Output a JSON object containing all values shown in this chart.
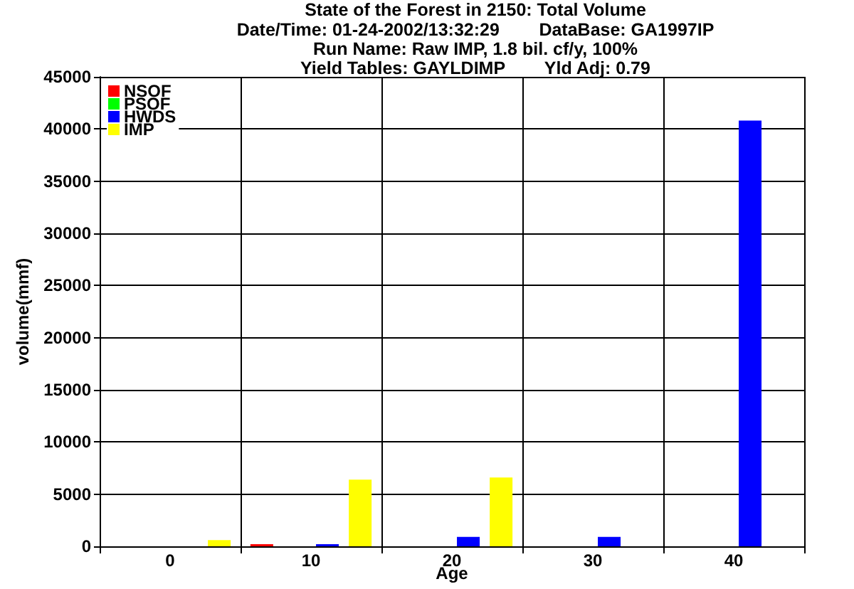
{
  "chart_data": {
    "type": "bar",
    "title": "State of the Forest in 2150: Total Volume",
    "subtitle": "Date/Time: 01-24-2002/13:32:29        DataBase: GA1997IP\nRun Name: Raw IMP, 1.8 bil. cf/y, 100%\nYield Tables: GAYLDIMP        Yld Adj: 0.79",
    "xlabel": "Age",
    "ylabel": "volume(mmf)",
    "categories": [
      "0",
      "10",
      "20",
      "30",
      "40"
    ],
    "series": [
      {
        "name": "NSOF",
        "color": "#ff0000",
        "values": [
          0,
          200,
          0,
          0,
          0
        ]
      },
      {
        "name": "PSOF",
        "color": "#00ff00",
        "values": [
          0,
          0,
          0,
          0,
          0
        ]
      },
      {
        "name": "HWDS",
        "color": "#0000ff",
        "values": [
          0,
          200,
          900,
          900,
          40800
        ]
      },
      {
        "name": "IMP",
        "color": "#ffff00",
        "values": [
          600,
          6400,
          6600,
          0,
          0
        ]
      }
    ],
    "ylim": [
      0,
      45000
    ],
    "yticks": [
      0,
      5000,
      10000,
      15000,
      20000,
      25000,
      30000,
      35000,
      40000,
      45000
    ],
    "grid": true,
    "legend": "top left"
  }
}
